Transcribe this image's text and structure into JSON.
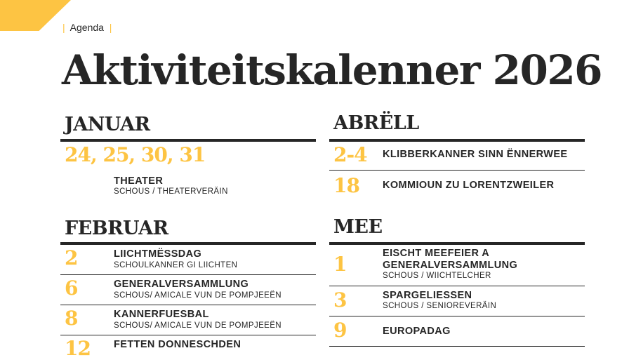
{
  "header": {
    "breadcrumb": "Agenda",
    "title": "Aktiviteitskalenner 2026",
    "accent_color": "#FDC443"
  },
  "left": {
    "januar": {
      "month": "JANUAR",
      "events": [
        {
          "date": "24, 25, 30, 31",
          "title": "THEATER",
          "sub": "SCHOUS / THEATERVERÄIN"
        }
      ]
    },
    "februar": {
      "month": "FEBRUAR",
      "events": [
        {
          "date": "2",
          "title": "LIICHTMËSSDAG",
          "sub": "SCHOULKANNER GI LIICHTEN"
        },
        {
          "date": "6",
          "title": "GENERALVERSAMMLUNG",
          "sub": "SCHOUS/ AMICALE VUN DE POMPJEEËN"
        },
        {
          "date": "8",
          "title": "KANNERFUESBAL",
          "sub": "SCHOUS/ AMICALE VUN DE POMPJEEËN"
        },
        {
          "date": "12",
          "title": "FETTEN DONNESCHDEN"
        }
      ]
    }
  },
  "right": {
    "abrell": {
      "month": "ABRËLL",
      "events": [
        {
          "date": "2-4",
          "title": "KLIBBERKANNER SINN ËNNERWEE"
        },
        {
          "date": "18",
          "title": "KOMMIOUN ZU LORENTZWEILER"
        }
      ]
    },
    "mee": {
      "month": "MEE",
      "events": [
        {
          "date": "1",
          "title": "EISCHT MEEFEIER A GENERALVERSAMMLUNG",
          "sub": "SCHOUS / WIICHTELCHER"
        },
        {
          "date": "3",
          "title": "SPARGELIESSEN",
          "sub": "SCHOUS / SENIOREVERÄIN"
        },
        {
          "date": "9",
          "title": "EUROPADAG"
        }
      ]
    }
  }
}
